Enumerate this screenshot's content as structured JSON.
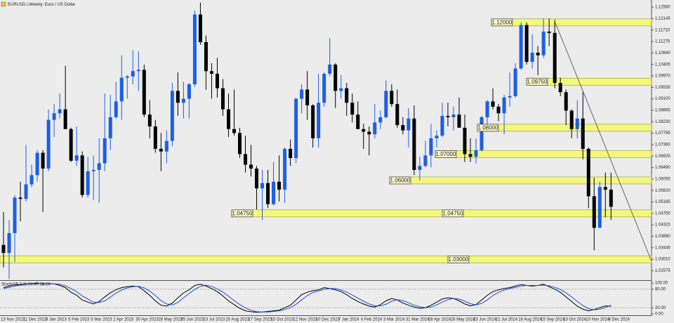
{
  "chart_data": [
    {
      "type": "candlestick",
      "title": "EURUSD.i,Weekly: Euro / US Dollar",
      "categories": [
        "13 Nov 2022",
        null,
        null,
        null,
        "11 Dec 2022",
        null,
        null,
        null,
        "8 Jan 2023",
        null,
        null,
        null,
        "5 Feb 2023",
        null,
        null,
        null,
        "5 Mar 2023",
        null,
        null,
        null,
        "2 Apr 2023",
        null,
        null,
        null,
        "30 Apr 2023",
        null,
        null,
        null,
        "28 May 2023",
        null,
        null,
        null,
        "25 Jun 2023",
        null,
        null,
        null,
        "23 Jul 2023",
        null,
        null,
        null,
        "20 Aug 2023",
        null,
        null,
        null,
        "17 Sep 2023",
        null,
        null,
        null,
        "15 Oct 2023",
        null,
        null,
        null,
        "12 Nov 2023",
        null,
        null,
        null,
        "10 Dec 2023",
        null,
        null,
        null,
        "7 Jan 2024",
        null,
        null,
        null,
        "4 Feb 2024",
        null,
        null,
        null,
        "3 Mar 2024",
        null,
        null,
        null,
        "31 Mar 2024",
        null,
        null,
        null,
        "28 Apr 2024",
        null,
        null,
        null,
        "26 May 2024",
        null,
        null,
        null,
        "23 Jun 2024",
        null,
        null,
        null,
        "21 Jul 2024",
        null,
        null,
        null,
        "18 Aug 2024",
        null,
        null,
        null,
        "15 Sep 2024",
        null,
        null,
        null,
        "13 Oct 2024",
        null,
        null,
        null,
        "10 Nov 2024",
        null,
        null,
        null,
        "8 Dec 2024"
      ],
      "open": [
        1.0355,
        1.0325,
        1.04,
        1.0535,
        1.053,
        1.0585,
        1.062,
        1.0705,
        1.0645,
        1.083,
        1.0855,
        1.087,
        1.0795,
        1.0675,
        1.0695,
        1.0545,
        1.0635,
        1.064,
        1.0665,
        1.076,
        1.084,
        1.09,
        1.099,
        1.0995,
        1.1015,
        1.102,
        1.085,
        1.0805,
        1.072,
        1.071,
        1.075,
        1.094,
        1.0895,
        1.091,
        1.0965,
        1.123,
        1.1125,
        1.1015,
        1.1005,
        1.095,
        1.087,
        1.0795,
        1.078,
        1.07,
        1.066,
        1.0645,
        1.057,
        1.059,
        1.051,
        1.0595,
        1.0565,
        1.072,
        1.0685,
        1.091,
        1.0945,
        1.0885,
        1.076,
        1.0895,
        1.1005,
        1.104,
        1.094,
        1.095,
        1.0895,
        1.085,
        1.0795,
        1.0785,
        1.0775,
        1.082,
        1.084,
        1.094,
        1.089,
        1.081,
        1.079,
        1.0835,
        1.064,
        1.0655,
        1.0695,
        1.076,
        1.077,
        1.0845,
        1.084,
        1.085,
        1.08,
        1.07,
        1.069,
        1.0715,
        1.084,
        1.09,
        1.088,
        1.0855,
        1.0915,
        1.092,
        1.1025,
        1.119,
        1.105,
        1.1085,
        1.1075,
        1.1165,
        1.116,
        1.097,
        1.0935,
        1.0865,
        1.0795,
        1.0835,
        1.072,
        1.054,
        1.042,
        1.0575,
        1.0565
      ],
      "high": [
        1.048,
        1.045,
        1.0545,
        1.0595,
        1.0735,
        1.066,
        1.0715,
        1.0715,
        1.087,
        1.089,
        1.093,
        1.1035,
        1.08,
        1.0805,
        1.071,
        1.069,
        1.0695,
        1.076,
        1.093,
        1.0925,
        1.0975,
        1.1075,
        1.1,
        1.1095,
        1.109,
        1.104,
        1.0905,
        1.083,
        1.078,
        1.079,
        1.097,
        1.101,
        1.0975,
        1.097,
        1.1245,
        1.1275,
        1.115,
        1.1045,
        1.1065,
        1.0985,
        1.093,
        1.0945,
        1.08,
        1.077,
        1.0735,
        1.0655,
        1.064,
        1.064,
        1.067,
        1.0695,
        1.0725,
        1.0755,
        1.0915,
        1.0965,
        1.1015,
        1.089,
        1.1005,
        1.101,
        1.114,
        1.1045,
        1.1,
        1.097,
        1.093,
        1.09,
        1.0815,
        1.0805,
        1.089,
        1.0865,
        1.098,
        1.0965,
        1.0945,
        1.084,
        1.0875,
        1.0885,
        1.069,
        1.075,
        1.0815,
        1.079,
        1.0895,
        1.0895,
        1.088,
        1.0915,
        1.085,
        1.076,
        1.076,
        1.0845,
        1.0905,
        1.095,
        1.089,
        1.0925,
        1.101,
        1.1045,
        1.12,
        1.12,
        1.1155,
        1.111,
        1.1215,
        1.1215,
        1.121,
        1.099,
        1.0945,
        1.087,
        1.0905,
        1.0935,
        1.0725,
        1.061,
        1.0595,
        1.063,
        1.063
      ],
      "low": [
        1.027,
        1.0225,
        1.029,
        1.0445,
        1.052,
        1.0575,
        1.0595,
        1.048,
        1.0635,
        1.0765,
        1.0835,
        1.0795,
        1.067,
        1.0655,
        1.0535,
        1.0535,
        1.0525,
        1.0515,
        1.0635,
        1.0715,
        1.0835,
        1.083,
        1.091,
        1.0965,
        1.094,
        1.084,
        1.076,
        1.0705,
        1.0635,
        1.0665,
        1.073,
        1.0845,
        1.0835,
        1.0835,
        1.0955,
        1.1115,
        1.0945,
        1.091,
        1.0915,
        1.0845,
        1.0765,
        1.077,
        1.0685,
        1.063,
        1.0615,
        1.049,
        1.045,
        1.0495,
        1.0505,
        1.052,
        1.0515,
        1.0655,
        1.0665,
        1.0855,
        1.083,
        1.0725,
        1.0725,
        1.088,
        1.0995,
        1.0875,
        1.091,
        1.0845,
        1.082,
        1.0795,
        1.072,
        1.0695,
        1.076,
        1.0795,
        1.0835,
        1.088,
        1.08,
        1.0775,
        1.0725,
        1.062,
        1.06,
        1.065,
        1.065,
        1.0725,
        1.0765,
        1.0805,
        1.079,
        1.08,
        1.067,
        1.067,
        1.0665,
        1.071,
        1.079,
        1.087,
        1.0825,
        1.0775,
        1.088,
        1.0915,
        1.102,
        1.104,
        1.1025,
        1.1,
        1.1065,
        1.111,
        1.095,
        1.092,
        1.081,
        1.076,
        1.076,
        1.068,
        1.0495,
        1.0335,
        1.042,
        1.046,
        1.045
      ],
      "close": [
        1.0325,
        1.04,
        1.0535,
        1.053,
        1.0585,
        1.062,
        1.0705,
        1.0645,
        1.083,
        1.0855,
        1.087,
        1.0795,
        1.0675,
        1.0695,
        1.0545,
        1.0635,
        1.064,
        1.0665,
        1.076,
        1.084,
        1.09,
        1.099,
        1.0995,
        1.1015,
        1.102,
        1.085,
        1.0805,
        1.072,
        1.071,
        1.075,
        1.094,
        1.0895,
        1.091,
        1.0965,
        1.123,
        1.1125,
        1.1015,
        1.1005,
        1.095,
        1.087,
        1.0795,
        1.078,
        1.07,
        1.066,
        1.0645,
        1.057,
        1.059,
        1.051,
        1.0595,
        1.0565,
        1.072,
        1.0685,
        1.091,
        1.0945,
        1.0885,
        1.076,
        1.0895,
        1.1005,
        1.104,
        1.094,
        1.095,
        1.0895,
        1.085,
        1.0795,
        1.0785,
        1.0775,
        1.082,
        1.084,
        1.094,
        1.089,
        1.081,
        1.079,
        1.0835,
        1.064,
        1.0655,
        1.0695,
        1.076,
        1.077,
        1.0845,
        1.084,
        1.085,
        1.08,
        1.07,
        1.069,
        1.0715,
        1.084,
        1.09,
        1.088,
        1.0855,
        1.0915,
        1.092,
        1.1025,
        1.119,
        1.105,
        1.1085,
        1.1075,
        1.1165,
        1.116,
        1.097,
        1.0935,
        1.0865,
        1.0795,
        1.0835,
        1.072,
        1.054,
        1.042,
        1.0575,
        1.0565,
        1.05
      ],
      "up_color": "#1c5ee6",
      "down_color": "#000000",
      "ylim": [
        1.0224,
        1.1285
      ],
      "yticks": [
        {
          "value": 1.02575,
          "label": "1.02575"
        },
        {
          "value": 1.0301,
          "label": "1.03010"
        },
        {
          "value": 1.03445,
          "label": "1.03445"
        },
        {
          "value": 1.0388,
          "label": "1.03880"
        },
        {
          "value": 1.04315,
          "label": "1.04315"
        },
        {
          "value": 1.0475,
          "label": "1.04750"
        },
        {
          "value": 1.05185,
          "label": "1.05185"
        },
        {
          "value": 1.0562,
          "label": "1.05620"
        },
        {
          "value": 1.06055,
          "label": "1.06055"
        },
        {
          "value": 1.0649,
          "label": "1.06490"
        },
        {
          "value": 1.06925,
          "label": "1.06925"
        },
        {
          "value": 1.0736,
          "label": "1.07360"
        },
        {
          "value": 1.07795,
          "label": "1.07795"
        },
        {
          "value": 1.0823,
          "label": "1.08230"
        },
        {
          "value": 1.08665,
          "label": "1.08665"
        },
        {
          "value": 1.091,
          "label": "1.09100"
        },
        {
          "value": 1.09535,
          "label": "1.09535"
        },
        {
          "value": 1.0997,
          "label": "1.09970"
        },
        {
          "value": 1.10405,
          "label": "1.10405"
        },
        {
          "value": 1.1084,
          "label": "1.10840"
        },
        {
          "value": 1.11275,
          "label": "1.11275"
        },
        {
          "value": 1.1171,
          "label": "1.11710"
        },
        {
          "value": 1.12145,
          "label": "1.12145"
        },
        {
          "value": 1.1258,
          "label": "1.12580"
        }
      ],
      "levels": [
        {
          "value": 1.12,
          "label": "1.12000"
        },
        {
          "value": 1.0975,
          "label": "1.09750"
        },
        {
          "value": 1.08,
          "label": "1.08000"
        },
        {
          "value": 1.07,
          "label": "1.07000"
        },
        {
          "value": 1.06,
          "label": "1.06000"
        },
        {
          "value": 1.0475,
          "label": "1.04750"
        },
        {
          "value": 1.03,
          "label": "1.03000"
        }
      ],
      "level_color": "#f3f77e"
    },
    {
      "type": "line",
      "title": "Stoch(15,3,3) 24.40 28.24",
      "series": [
        {
          "color": "#000000",
          "values": [
            85,
            90,
            95,
            95,
            97,
            98,
            100,
            96,
            98,
            97,
            92,
            85,
            70,
            60,
            45,
            38,
            32,
            40,
            55,
            68,
            78,
            85,
            88,
            90,
            88,
            75,
            60,
            42,
            28,
            25,
            35,
            52,
            68,
            78,
            92,
            96,
            90,
            82,
            72,
            58,
            42,
            30,
            18,
            10,
            7,
            5,
            6,
            8,
            10,
            12,
            20,
            28,
            45,
            62,
            70,
            75,
            78,
            85,
            82,
            78,
            72,
            62,
            50,
            40,
            32,
            25,
            22,
            30,
            42,
            50,
            45,
            35,
            28,
            22,
            18,
            20,
            28,
            38,
            48,
            52,
            50,
            42,
            32,
            26,
            30,
            45,
            60,
            72,
            78,
            82,
            85,
            90,
            95,
            92,
            90,
            92,
            96,
            88,
            80,
            70,
            55,
            40,
            25,
            15,
            10,
            14,
            20,
            26,
            24.4
          ]
        },
        {
          "color": "#1f4fd4",
          "values": [
            82,
            86,
            90,
            93,
            96,
            97,
            98,
            98,
            97,
            97,
            96,
            91,
            82,
            72,
            58,
            48,
            38,
            37,
            42,
            54,
            67,
            77,
            84,
            88,
            89,
            84,
            74,
            59,
            43,
            32,
            29,
            37,
            52,
            66,
            79,
            89,
            93,
            89,
            81,
            71,
            57,
            43,
            30,
            19,
            12,
            7,
            6,
            6,
            8,
            10,
            14,
            20,
            31,
            45,
            59,
            69,
            74,
            79,
            82,
            82,
            77,
            71,
            61,
            51,
            41,
            32,
            26,
            26,
            31,
            41,
            46,
            43,
            36,
            28,
            23,
            20,
            22,
            29,
            38,
            46,
            50,
            48,
            41,
            33,
            29,
            34,
            45,
            59,
            70,
            77,
            82,
            86,
            90,
            92,
            92,
            92,
            93,
            91,
            86,
            79,
            68,
            55,
            40,
            27,
            17,
            13,
            15,
            20,
            28.24
          ]
        }
      ],
      "ylim": [
        0,
        100
      ],
      "yticks": [
        {
          "value": 0,
          "label": "0.00"
        },
        {
          "value": 20,
          "label": "20.00"
        },
        {
          "value": 80,
          "label": "80.00"
        },
        {
          "value": 100,
          "label": "100.00"
        }
      ],
      "levels": [
        20,
        80
      ]
    }
  ]
}
